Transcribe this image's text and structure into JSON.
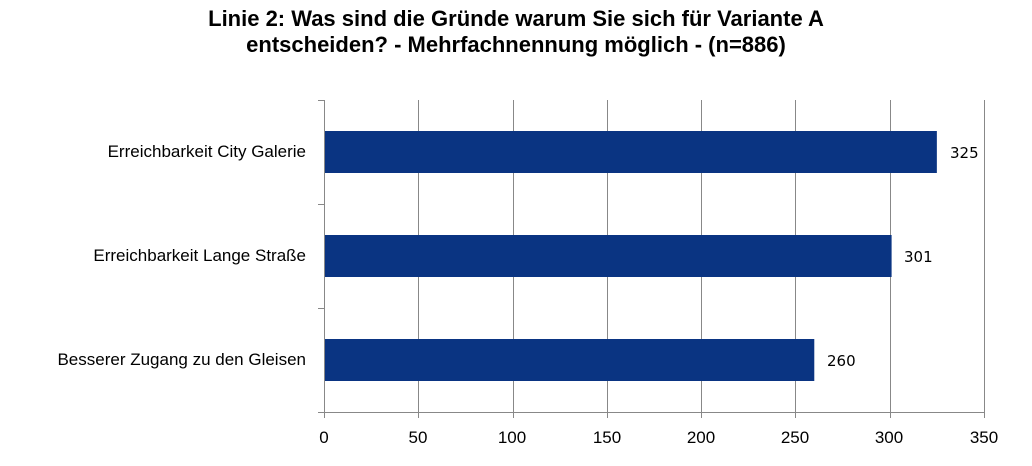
{
  "chart_data": {
    "type": "bar",
    "orientation": "horizontal",
    "title_line1": "Linie 2: Was sind die Gründe warum Sie sich für Variante A",
    "title_line2": "entscheiden? - Mehrfachnennung möglich - (n=886)",
    "categories": [
      "Erreichbarkeit City Galerie",
      "Erreichbarkeit Lange Straße",
      "Besserer Zugang zu den Gleisen"
    ],
    "values": [
      325,
      301,
      260
    ],
    "xlim": [
      0,
      350
    ],
    "xticks": [
      0,
      50,
      100,
      150,
      200,
      250,
      300,
      350
    ],
    "grid": true,
    "legend": "none",
    "bar_color": "#0a3482"
  }
}
